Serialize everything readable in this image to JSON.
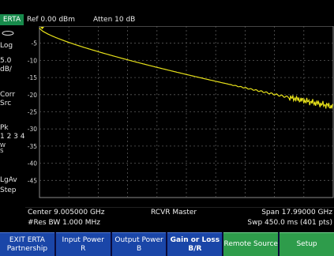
{
  "header": {
    "mode": "ERTA",
    "ref": "Ref 0.00 dBm",
    "atten": "Atten 10 dB"
  },
  "sidebar": {
    "scale_type": "Log",
    "scale_value": "5.0",
    "scale_unit": "dB/",
    "corr_line1": "Corr",
    "corr_line2": "Src",
    "pk": "Pk",
    "trace_nums": "1 2 3 4",
    "w": "W",
    "s": "S",
    "avg": "LgAv",
    "step": "Step"
  },
  "screen": {
    "y_ticks": [
      "-5",
      "-10",
      "-15",
      "-20",
      "-25",
      "-30",
      "-35",
      "-40",
      "-45"
    ],
    "trace_color": "#e8e21a",
    "grid_color": "#5a5a5a"
  },
  "status": {
    "center": "Center 9.005000 GHz",
    "center_mode": "RCVR Master",
    "span": "Span 17.99000 GHz",
    "res_bw": "#Res BW 1.000 MHz",
    "sweep": "Swp 450.0 ms (401 pts)"
  },
  "softkeys": [
    {
      "line1": "EXIT ERTA",
      "line2": "Partnership",
      "style": "blue"
    },
    {
      "line1": "Input Power",
      "line2": "R",
      "style": "blue"
    },
    {
      "line1": "Output Power",
      "line2": "B",
      "style": "blue"
    },
    {
      "line1": "Gain or Loss",
      "line2": "B/R",
      "style": "blue-bold"
    },
    {
      "line1": "Remote Source",
      "line2": "",
      "style": "green"
    },
    {
      "line1": "Setup",
      "line2": "",
      "style": "green"
    }
  ]
}
